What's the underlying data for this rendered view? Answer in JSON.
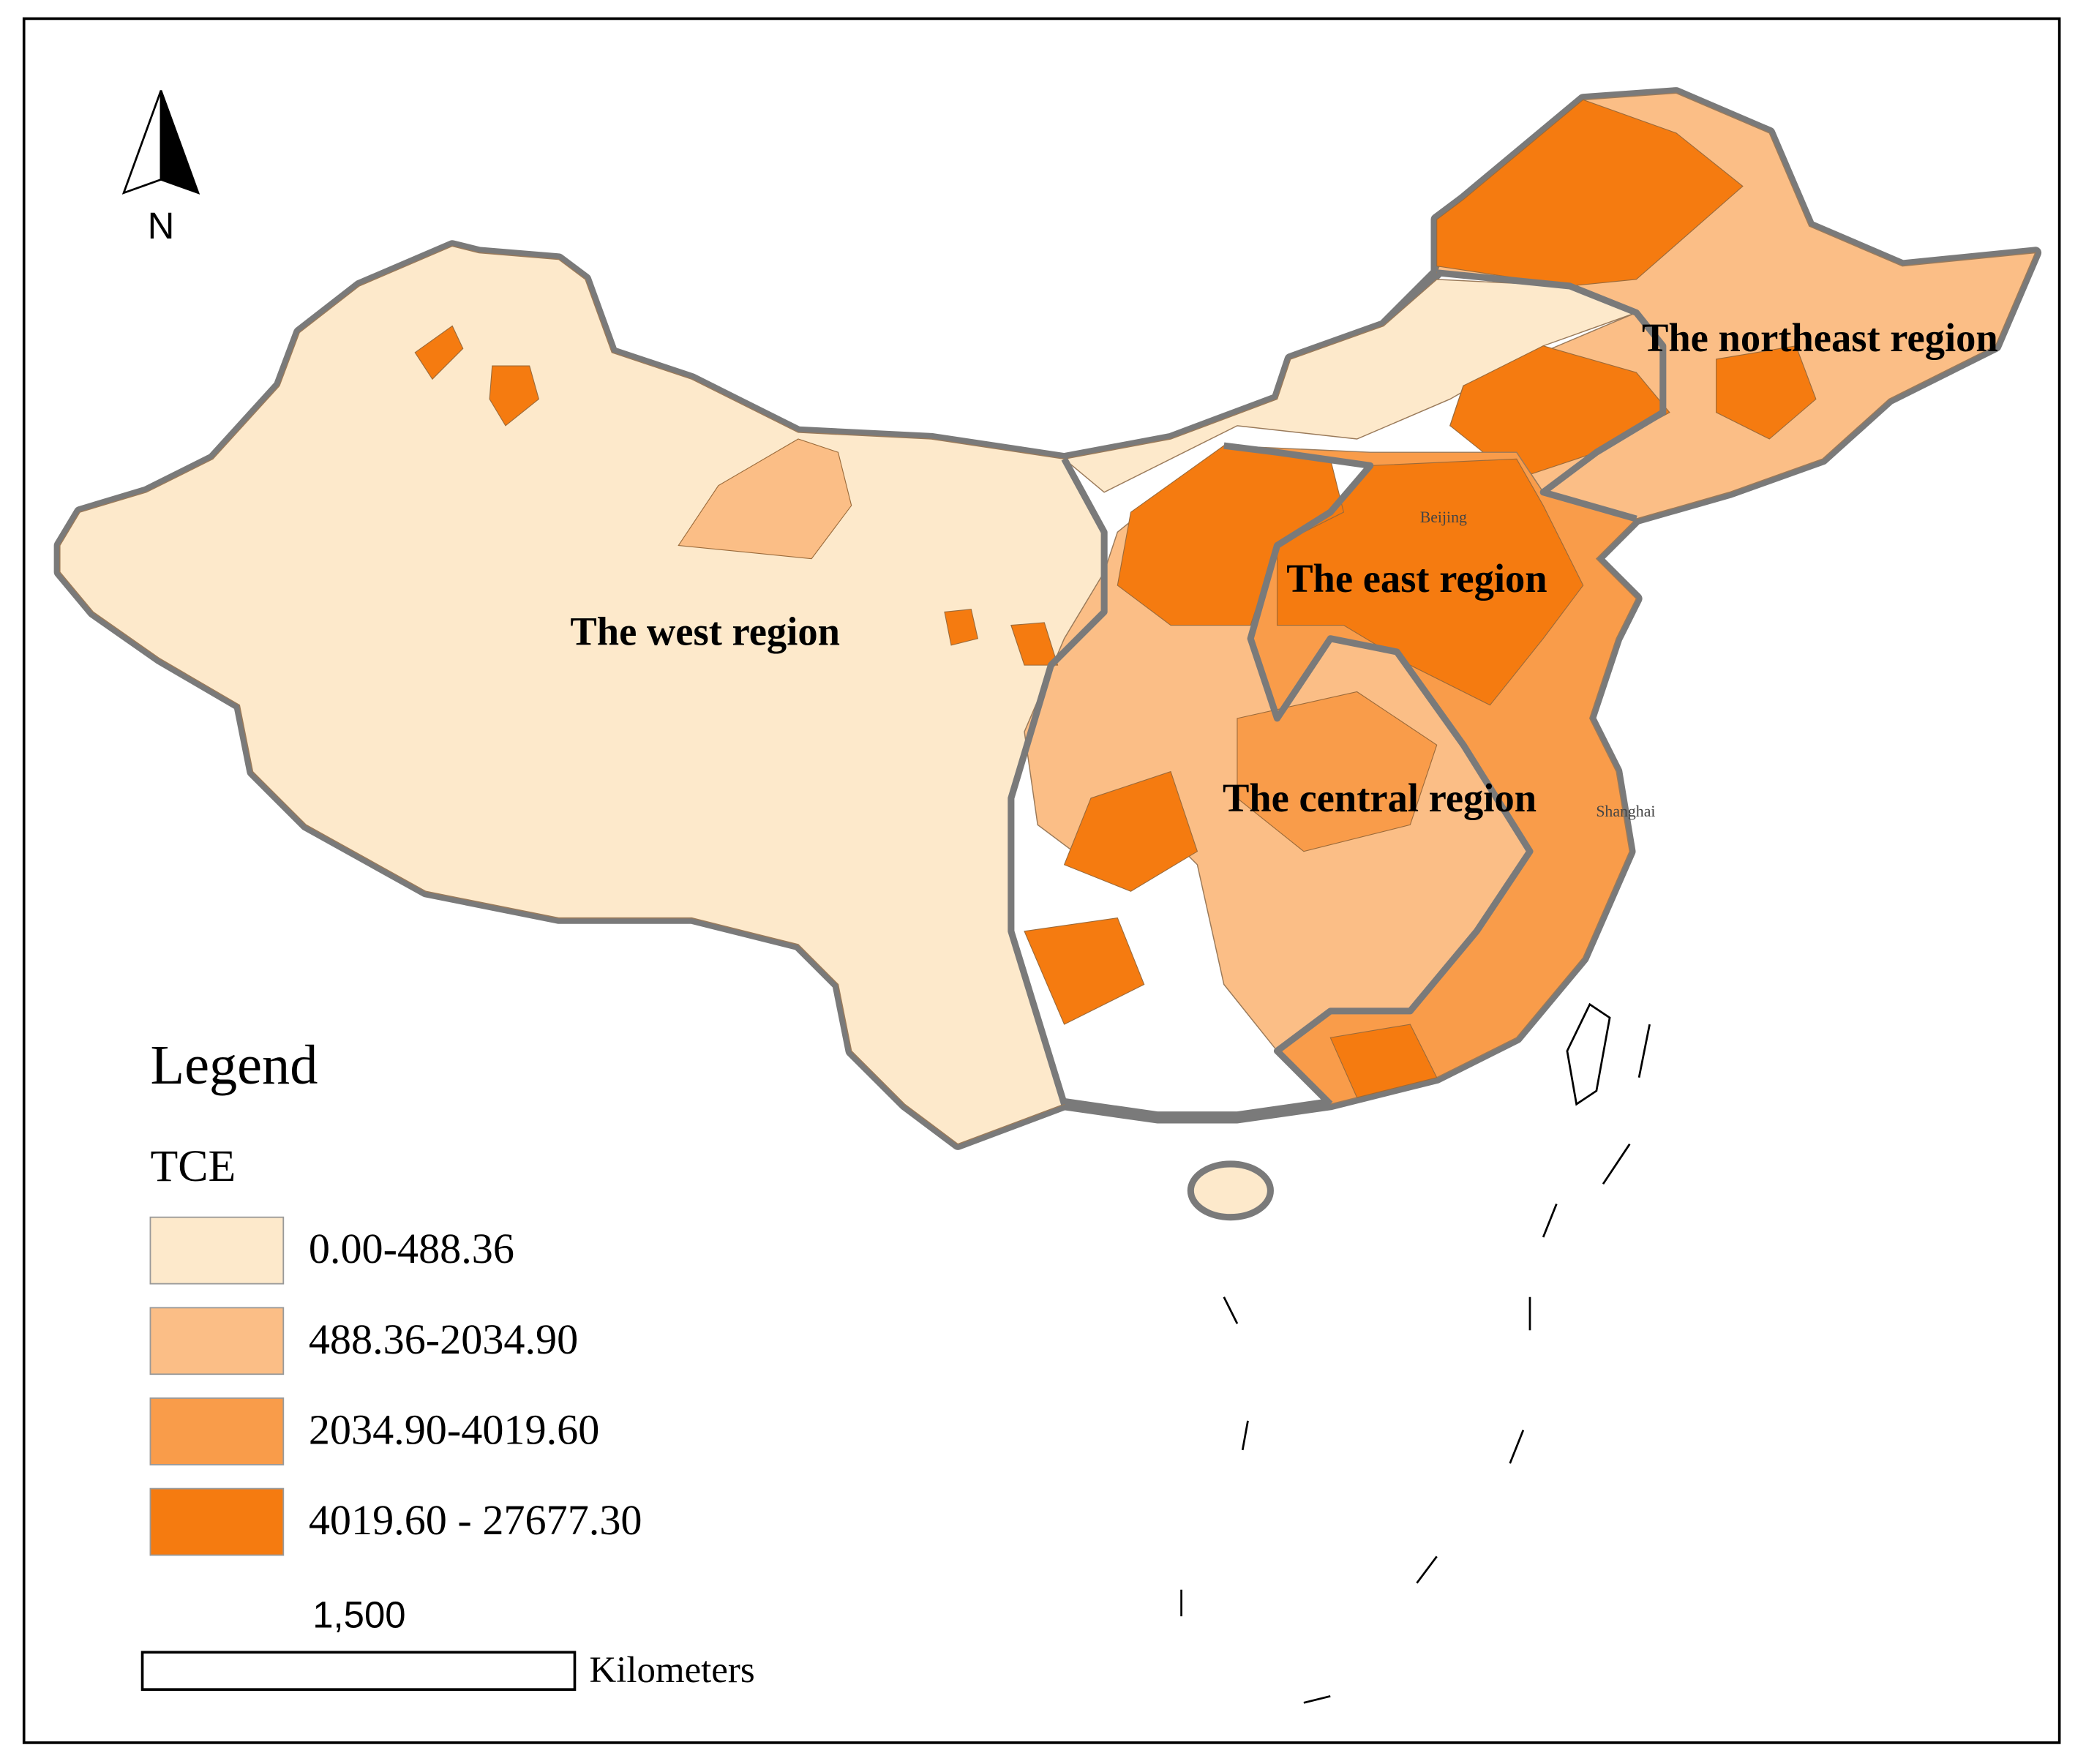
{
  "north_arrow": "N",
  "regions": [
    {
      "label": "The west region"
    },
    {
      "label": "The northeast region"
    },
    {
      "label": "The east region"
    },
    {
      "label": "The central region"
    }
  ],
  "cities": [
    {
      "label": "Beijing"
    },
    {
      "label": "Shanghai"
    }
  ],
  "legend": {
    "title": "Legend",
    "field": "TCE",
    "classes": [
      {
        "label": "0.00-488.36",
        "color": "#fde9cb"
      },
      {
        "label": "488.36-2034.90",
        "color": "#fbbe86"
      },
      {
        "label": "2034.90-4019.60",
        "color": "#f99c4a"
      },
      {
        "label": "4019.60 - 27677.30",
        "color": "#f57b10"
      }
    ]
  },
  "scale_bar": {
    "label": "1,500",
    "unit": "Kilometers"
  }
}
